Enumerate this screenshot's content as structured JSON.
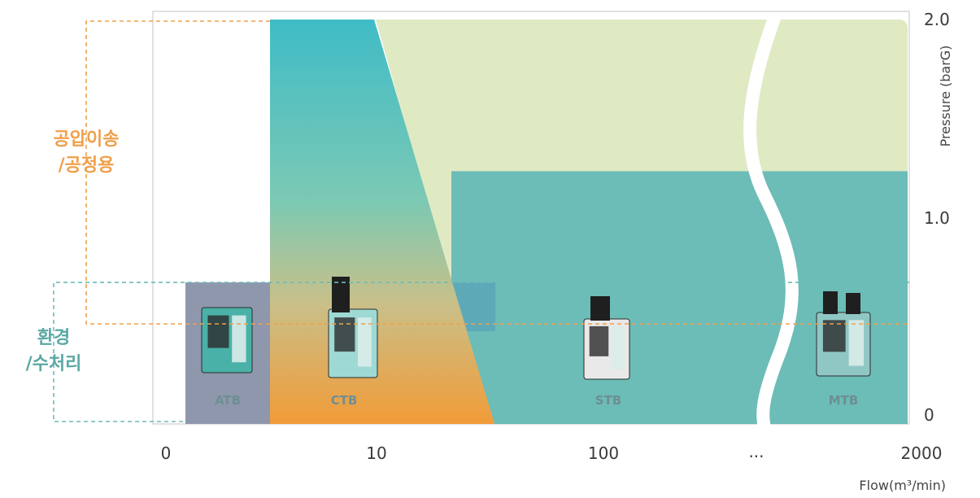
{
  "chart_data": {
    "type": "area",
    "title": "",
    "xlabel": "Flow(m³/min)",
    "ylabel": "Pressure (barG)",
    "x_ticks": [
      "0",
      "10",
      "100",
      "...",
      "2000"
    ],
    "y_ticks": [
      "2.0",
      "1.0",
      "0"
    ],
    "ylim": [
      0,
      2.0
    ],
    "x_scale": "log-style with break before 2000",
    "applications": [
      {
        "label": "공압이송\n/공정용",
        "color": "#f0a04b"
      },
      {
        "label": "환경\n/수처리",
        "color": "#5aa8a3"
      }
    ],
    "products": [
      {
        "name": "ATB",
        "color": "#8f97ad",
        "flow_max": 1,
        "pressure_max": 0.7
      },
      {
        "name": "CTB",
        "color": "#45bcc0",
        "flow_max": 30,
        "pressure_max": 2.0
      },
      {
        "name": "STB",
        "color": "#6cbcb7",
        "flow_max": 500,
        "pressure_max": 1.25
      },
      {
        "name": "MTB",
        "color": "#6cbcb7",
        "flow_max": 2000,
        "pressure_max": 1.25
      }
    ],
    "colors": {
      "upper_band": "#dfeac3",
      "teal": "#6cbcb7",
      "orange": "#f0a04b",
      "atb": "#8f97ad"
    }
  }
}
